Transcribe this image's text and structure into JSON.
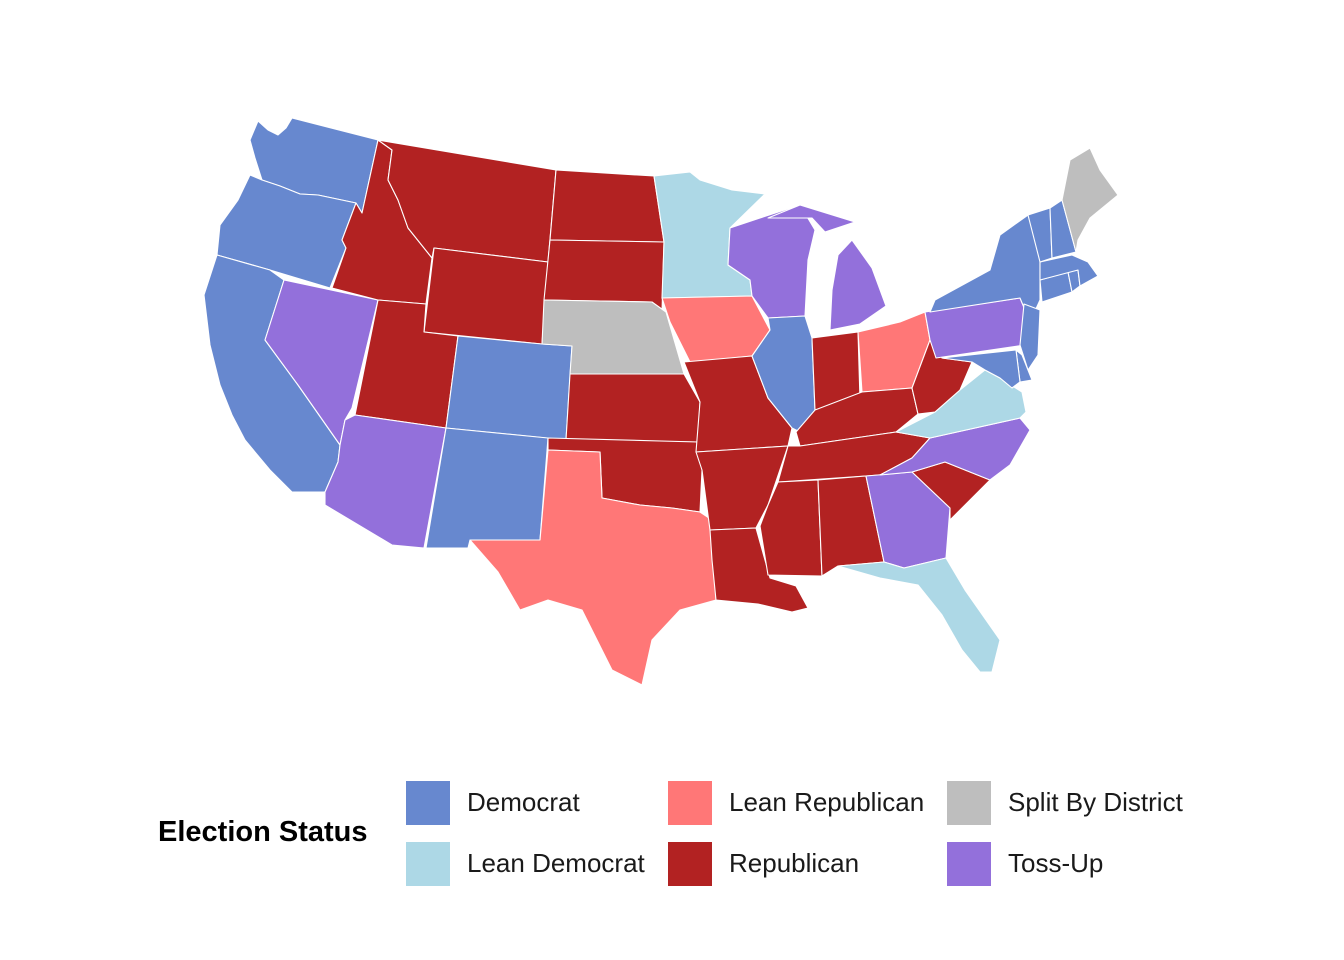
{
  "legend": {
    "title": "Election Status",
    "items": [
      {
        "key": "democrat",
        "label": "Democrat",
        "color": "#6788cf"
      },
      {
        "key": "lean_democrat",
        "label": "Lean Democrat",
        "color": "#add8e6"
      },
      {
        "key": "lean_republican",
        "label": "Lean Republican",
        "color": "#ff7777"
      },
      {
        "key": "republican",
        "label": "Republican",
        "color": "#b22222"
      },
      {
        "key": "split",
        "label": "Split By District",
        "color": "#bebebe"
      },
      {
        "key": "toss_up",
        "label": "Toss-Up",
        "color": "#9370db"
      }
    ]
  },
  "states": [
    {
      "state": "washington",
      "status": "democrat"
    },
    {
      "state": "oregon",
      "status": "democrat"
    },
    {
      "state": "california",
      "status": "democrat"
    },
    {
      "state": "nevada",
      "status": "toss_up"
    },
    {
      "state": "idaho",
      "status": "republican"
    },
    {
      "state": "montana",
      "status": "republican"
    },
    {
      "state": "wyoming",
      "status": "republican"
    },
    {
      "state": "utah",
      "status": "republican"
    },
    {
      "state": "arizona",
      "status": "toss_up"
    },
    {
      "state": "colorado",
      "status": "democrat"
    },
    {
      "state": "new-mexico",
      "status": "democrat"
    },
    {
      "state": "north-dakota",
      "status": "republican"
    },
    {
      "state": "south-dakota",
      "status": "republican"
    },
    {
      "state": "nebraska",
      "status": "split"
    },
    {
      "state": "kansas",
      "status": "republican"
    },
    {
      "state": "oklahoma",
      "status": "republican"
    },
    {
      "state": "texas",
      "status": "lean_republican"
    },
    {
      "state": "minnesota",
      "status": "lean_democrat"
    },
    {
      "state": "iowa",
      "status": "lean_republican"
    },
    {
      "state": "missouri",
      "status": "republican"
    },
    {
      "state": "arkansas",
      "status": "republican"
    },
    {
      "state": "louisiana",
      "status": "republican"
    },
    {
      "state": "wisconsin",
      "status": "toss_up"
    },
    {
      "state": "michigan",
      "status": "toss_up"
    },
    {
      "state": "illinois",
      "status": "democrat"
    },
    {
      "state": "indiana",
      "status": "republican"
    },
    {
      "state": "ohio",
      "status": "lean_republican"
    },
    {
      "state": "kentucky",
      "status": "republican"
    },
    {
      "state": "tennessee",
      "status": "republican"
    },
    {
      "state": "mississippi",
      "status": "republican"
    },
    {
      "state": "alabama",
      "status": "republican"
    },
    {
      "state": "georgia",
      "status": "toss_up"
    },
    {
      "state": "florida",
      "status": "lean_democrat"
    },
    {
      "state": "south-carolina",
      "status": "republican"
    },
    {
      "state": "north-carolina",
      "status": "toss_up"
    },
    {
      "state": "virginia",
      "status": "lean_democrat"
    },
    {
      "state": "west-virginia",
      "status": "republican"
    },
    {
      "state": "pennsylvania",
      "status": "toss_up"
    },
    {
      "state": "new-york",
      "status": "democrat"
    },
    {
      "state": "new-jersey",
      "status": "democrat"
    },
    {
      "state": "delaware",
      "status": "democrat"
    },
    {
      "state": "maryland",
      "status": "democrat"
    },
    {
      "state": "connecticut",
      "status": "democrat"
    },
    {
      "state": "rhode-island",
      "status": "democrat"
    },
    {
      "state": "massachusetts",
      "status": "democrat"
    },
    {
      "state": "vermont",
      "status": "democrat"
    },
    {
      "state": "new-hampshire",
      "status": "democrat"
    },
    {
      "state": "maine",
      "status": "split"
    }
  ]
}
